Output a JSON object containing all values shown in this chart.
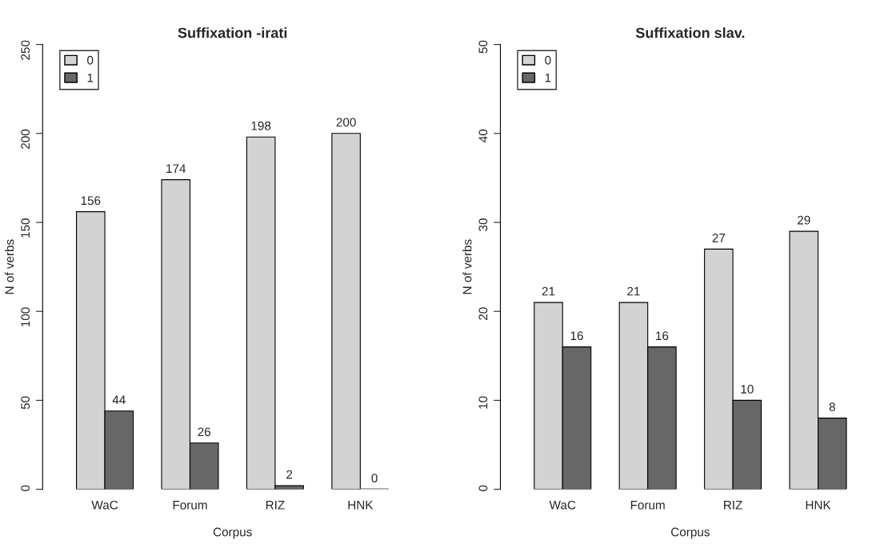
{
  "chart_data": [
    {
      "type": "bar",
      "title": "Suffixation -irati",
      "xlabel": "Corpus",
      "ylabel": "N of verbs",
      "categories": [
        "WaC",
        "Forum",
        "RIZ",
        "HNK"
      ],
      "series": [
        {
          "name": "0",
          "color": "#d3d3d3",
          "values": [
            156,
            174,
            198,
            200
          ]
        },
        {
          "name": "1",
          "color": "#676767",
          "values": [
            44,
            26,
            2,
            0
          ]
        }
      ],
      "ylim": [
        0,
        250
      ],
      "yticks": [
        0,
        50,
        100,
        150,
        200,
        250
      ],
      "grid": false,
      "legend": "top left",
      "data_labels": true
    },
    {
      "type": "bar",
      "title": "Suffixation slav.",
      "xlabel": "Corpus",
      "ylabel": "N of verbs",
      "categories": [
        "WaC",
        "Forum",
        "RIZ",
        "HNK"
      ],
      "series": [
        {
          "name": "0",
          "color": "#d3d3d3",
          "values": [
            21,
            21,
            27,
            29
          ]
        },
        {
          "name": "1",
          "color": "#676767",
          "values": [
            16,
            16,
            10,
            8
          ]
        }
      ],
      "ylim": [
        0,
        50
      ],
      "yticks": [
        0,
        10,
        20,
        30,
        40,
        50
      ],
      "grid": false,
      "legend": "top left",
      "data_labels": true
    }
  ]
}
